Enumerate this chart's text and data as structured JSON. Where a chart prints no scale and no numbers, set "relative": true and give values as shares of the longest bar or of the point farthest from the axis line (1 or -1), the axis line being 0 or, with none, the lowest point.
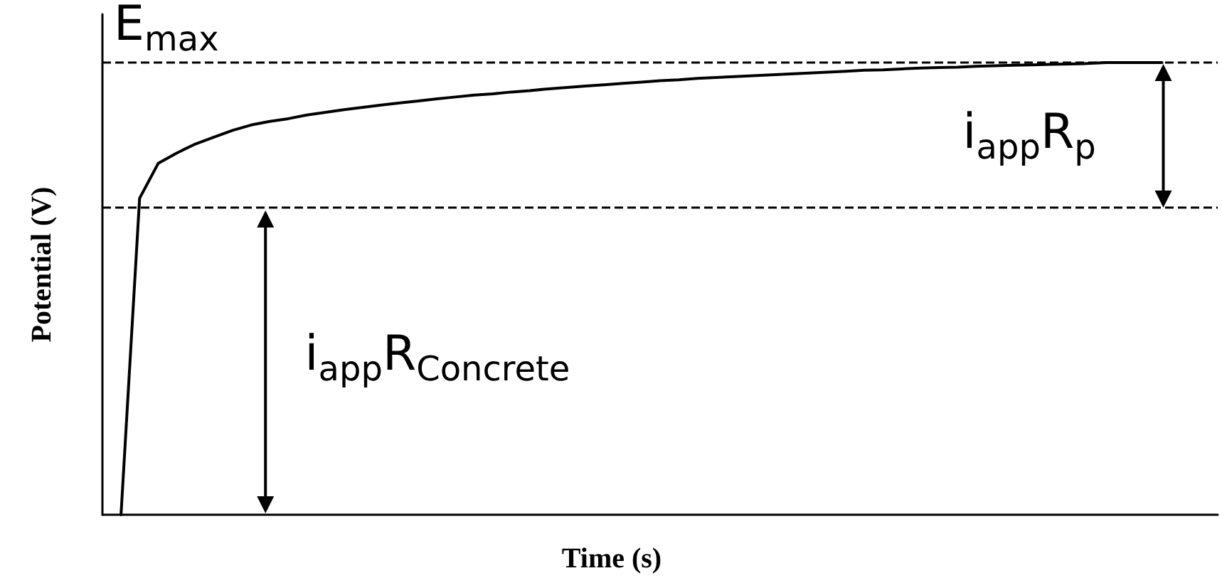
{
  "chart_data": {
    "type": "line",
    "xlabel": "Time (s)",
    "ylabel": "Potential (V)",
    "relative": true,
    "grid": false,
    "marker": "none",
    "line_style": "solid",
    "categories": [
      null,
      null,
      null,
      null,
      null,
      null,
      null,
      null,
      null,
      null,
      null,
      null,
      null,
      null,
      null,
      null,
      null,
      null,
      null,
      null,
      null,
      null,
      null,
      null,
      null,
      null,
      null,
      null,
      null,
      null,
      null,
      null,
      null,
      null,
      null,
      null,
      null,
      null,
      null,
      null,
      null,
      null,
      null,
      null,
      null,
      null,
      null,
      null,
      null,
      null,
      null,
      null,
      null,
      null,
      null,
      null,
      null,
      null,
      null,
      null,
      null
    ],
    "series": [
      {
        "color": "#000000",
        "values": [
          null,
          0,
          0.7,
          0.777,
          0.8,
          0.82,
          0.835,
          0.85,
          0.862,
          0.87,
          0.876,
          0.884,
          0.89,
          0.896,
          0.901,
          0.906,
          0.911,
          0.915,
          0.92,
          0.924,
          0.928,
          0.931,
          0.935,
          0.938,
          0.942,
          0.945,
          0.948,
          0.951,
          0.954,
          0.957,
          0.96,
          0.962,
          0.965,
          0.967,
          0.969,
          0.971,
          0.973,
          0.975,
          0.977,
          0.979,
          0.981,
          0.983,
          0.984,
          0.986,
          0.988,
          0.989,
          0.99,
          0.992,
          0.993,
          0.994,
          0.995,
          0.996,
          0.997,
          0.998,
          1,
          1,
          1,
          1,
          null,
          null,
          null
        ]
      }
    ],
    "ref_lines": [
      {
        "axis": "y",
        "value": 1,
        "label": "E$_{max}$",
        "line_style": "dashed",
        "color": "#000000"
      },
      {
        "axis": "y",
        "value": 0.676,
        "line_style": "dashed",
        "color": "#000000"
      }
    ],
    "annotations": [
      "i$_{app}$R$_{p}$",
      "i$_{app}$R$_{Concrete}$"
    ]
  }
}
